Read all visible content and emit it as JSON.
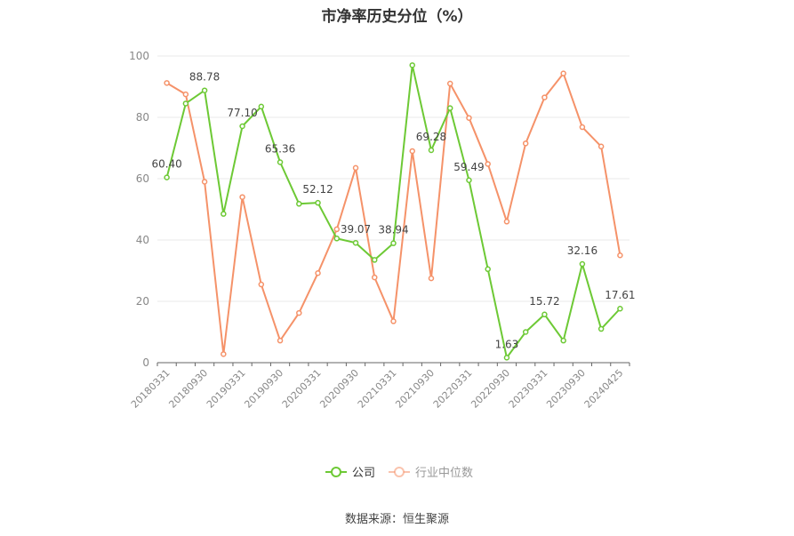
{
  "chart_data": {
    "type": "line",
    "title": "市净率历史分位（%）",
    "ylim": [
      0,
      100
    ],
    "yticks": [
      "0",
      "20",
      "40",
      "60",
      "80",
      "100"
    ],
    "x_tick_labels": [
      "20180331",
      "20180930",
      "20190331",
      "20190930",
      "20200331",
      "20200930",
      "20210331",
      "20210930",
      "20220331",
      "20220930",
      "20230331",
      "20230930",
      "20240425"
    ],
    "grid": true,
    "legend_position": "bottom-center",
    "series": [
      {
        "name": "公司",
        "color": "#6dc935",
        "values": [
          60.4,
          84.5,
          88.78,
          48.5,
          77.1,
          83.5,
          65.36,
          51.8,
          52.12,
          40.5,
          39.07,
          33.5,
          38.94,
          97.0,
          69.28,
          83.0,
          59.49,
          30.5,
          1.63,
          10.0,
          15.72,
          7.2,
          32.16,
          11.0,
          17.61
        ],
        "labels": [
          "60.40",
          "",
          "88.78",
          "",
          "77.10",
          "",
          "65.36",
          "",
          "52.12",
          "",
          "39.07",
          "",
          "38.94",
          "",
          "69.28",
          "",
          "59.49",
          "",
          "1.63",
          "",
          "15.72",
          "",
          "32.16",
          "",
          "17.61"
        ]
      },
      {
        "name": "行业中位数",
        "color": "#f59269",
        "values": [
          91.2,
          87.5,
          59.0,
          2.8,
          54.0,
          25.5,
          7.2,
          16.2,
          29.2,
          43.5,
          63.5,
          27.8,
          13.5,
          69.0,
          27.5,
          91.0,
          79.8,
          64.8,
          46.0,
          71.5,
          86.5,
          94.3,
          76.8,
          70.5,
          35.0
        ]
      }
    ]
  },
  "source_text": "数据来源：恒生聚源"
}
